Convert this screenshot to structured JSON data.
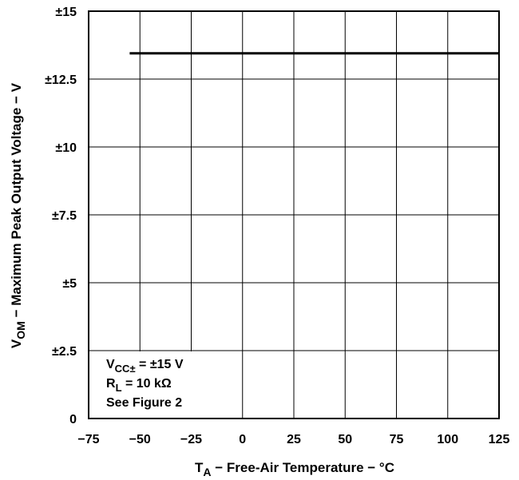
{
  "chart_data": {
    "type": "line",
    "title": "",
    "xlabel": {
      "main": "T",
      "sub": "A",
      "rest": " − Free-Air Temperature − °C"
    },
    "ylabel": {
      "main": "V",
      "sub": "OM",
      "rest": " − Maximum Peak Output Voltage − V"
    },
    "xlim": [
      -75,
      125
    ],
    "ylim": [
      0,
      15
    ],
    "grid": true,
    "x_ticks": [
      {
        "value": -75,
        "label": "−75"
      },
      {
        "value": -50,
        "label": "−50"
      },
      {
        "value": -25,
        "label": "−25"
      },
      {
        "value": 0,
        "label": "0"
      },
      {
        "value": 25,
        "label": "25"
      },
      {
        "value": 50,
        "label": "50"
      },
      {
        "value": 75,
        "label": "75"
      },
      {
        "value": 100,
        "label": "100"
      },
      {
        "value": 125,
        "label": "125"
      }
    ],
    "y_ticks": [
      {
        "value": 0,
        "label": "0"
      },
      {
        "value": 2.5,
        "label": "±2.5"
      },
      {
        "value": 5,
        "label": "±5"
      },
      {
        "value": 7.5,
        "label": "±7.5"
      },
      {
        "value": 10,
        "label": "±10"
      },
      {
        "value": 12.5,
        "label": "±12.5"
      },
      {
        "value": 15,
        "label": "±15"
      }
    ],
    "series": [
      {
        "x": [
          -55,
          125
        ],
        "y": [
          13.45,
          13.45
        ]
      }
    ],
    "annotations": [
      {
        "main": "V",
        "sub": "CC±",
        "rest": " = ±15 V"
      },
      {
        "main": "R",
        "sub": "L",
        "rest": " = 10 kΩ"
      },
      {
        "main": "",
        "sub": "",
        "rest": "See Figure 2"
      }
    ]
  }
}
